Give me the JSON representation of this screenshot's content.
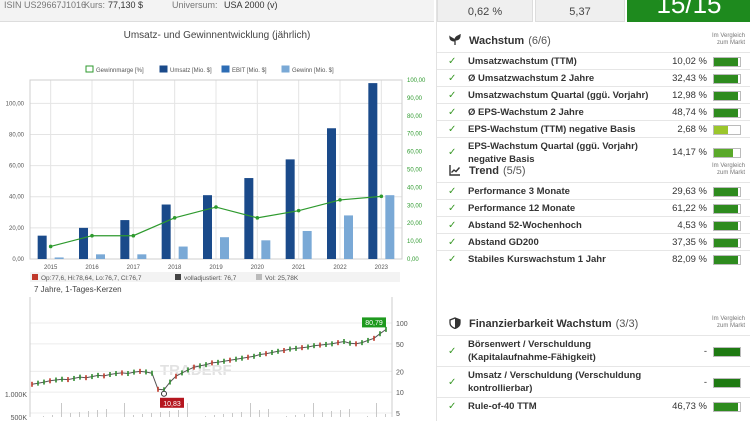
{
  "header": {
    "isin": "ISIN US29667J1016",
    "kurs_label": "Kurs:",
    "kurs_value": "77,130 $",
    "universum_label": "Universum:",
    "universum_value": "USA 2000 (v)"
  },
  "top_cards": {
    "card1": "0,62 %",
    "card2": "5,37",
    "score": "15/15"
  },
  "chart_data": [
    {
      "type": "bar",
      "title": "Umsatz- und Gewinnentwicklung (jährlich)",
      "categories": [
        "2015",
        "2016",
        "2017",
        "2018",
        "2019",
        "2020",
        "2021",
        "2022",
        "2023"
      ],
      "legend": [
        "Gewinnmarge [%]",
        "Umsatz [Mio. $]",
        "EBIT [Mio. $]",
        "Gewinn [Mio. $]"
      ],
      "left_ticks": [
        "0,00",
        "20,00",
        "40,00",
        "60,00",
        "80,00",
        "100,00"
      ],
      "right_ticks": [
        "0,00",
        "10,00",
        "20,00",
        "30,00",
        "40,00",
        "50,00",
        "60,00",
        "70,00",
        "80,00",
        "90,00",
        "100,00"
      ],
      "ylim_left": [
        0,
        115
      ],
      "ylim_right": [
        0,
        100
      ],
      "series": [
        {
          "name": "Umsatz [Mio. $]",
          "color": "#1a4a8a",
          "values": [
            15,
            20,
            25,
            35,
            41,
            52,
            64,
            84,
            113
          ]
        },
        {
          "name": "Gewinn [Mio. $]",
          "color": "#7aa9d6",
          "values": [
            1,
            3,
            3,
            8,
            14,
            12,
            18,
            28,
            41
          ]
        },
        {
          "name": "Gewinnmarge [%]",
          "color": "#2e9a2e",
          "axis": "right",
          "values": [
            7,
            13,
            13,
            23,
            29,
            23,
            27,
            33,
            35
          ]
        }
      ]
    },
    {
      "type": "line",
      "legend_op": "Op:77,6, Hi:78,64, Lo:76,7, Cl:76,7",
      "legend_adj": "volladjustiert: 76,7",
      "legend_vol": "Vol: 25,78K",
      "subtitle": "7 Jahre, 1-Tages-Kerzen",
      "watermark": "TRADERF",
      "last_price": "80,79",
      "low_price": "10,83",
      "price_ticks": [
        "100",
        "50",
        "20",
        "10",
        "5"
      ],
      "volume_ticks": [
        "1.000K",
        "500K"
      ],
      "prices": [
        13,
        13.5,
        14,
        14.6,
        15,
        15.4,
        15.2,
        15.8,
        16.5,
        16.2,
        16.8,
        17.5,
        17.2,
        18,
        18.6,
        19,
        18.6,
        19.5,
        20,
        19.6,
        18.8,
        11,
        10.83,
        14,
        17,
        19,
        21,
        23,
        24,
        25,
        26.5,
        27,
        28,
        29,
        30,
        31,
        32,
        33,
        35,
        36,
        37.5,
        39,
        40,
        42,
        43,
        44,
        45,
        47,
        48,
        49,
        50,
        52,
        54,
        51,
        50,
        52,
        56,
        60,
        70,
        80.79
      ]
    }
  ],
  "sections": [
    {
      "title": "Wachstum",
      "count": "(6/6)",
      "compare": "Im Vergleich zum Markt",
      "rows": [
        {
          "label": "Umsatzwachstum (TTM)",
          "value": "10,02 %",
          "fill": 0.92,
          "color": "#2e8b1e"
        },
        {
          "label": "Ø Umsatzwachstum 2 Jahre",
          "value": "32,43 %",
          "fill": 0.92,
          "color": "#2e8b1e"
        },
        {
          "label": "Umsatzwachstum Quartal (ggü. Vorjahr)",
          "value": "12,98 %",
          "fill": 0.92,
          "color": "#2e8b1e"
        },
        {
          "label": "Ø EPS-Wachstum 2 Jahre",
          "value": "48,74 %",
          "fill": 0.92,
          "color": "#2e8b1e"
        },
        {
          "label": "EPS-Wachstum (TTM) negative Basis",
          "value": "2,68 %",
          "fill": 0.55,
          "color": "#9bc62c"
        },
        {
          "label": "EPS-Wachstum Quartal (ggü. Vorjahr) negative Basis",
          "value": "14,17 %",
          "fill": 0.72,
          "color": "#5aa92a"
        }
      ]
    },
    {
      "title": "Trend",
      "count": "(5/5)",
      "compare": "Im Vergleich zum Markt",
      "rows": [
        {
          "label": "Performance 3 Monate",
          "value": "29,63 %",
          "fill": 0.92,
          "color": "#2e8b1e"
        },
        {
          "label": "Performance 12 Monate",
          "value": "61,22 %",
          "fill": 0.92,
          "color": "#2e8b1e"
        },
        {
          "label": "Abstand 52-Wochenhoch",
          "value": "4,53 %",
          "fill": 0.92,
          "color": "#2e8b1e"
        },
        {
          "label": "Abstand GD200",
          "value": "37,35 %",
          "fill": 0.92,
          "color": "#2e8b1e"
        },
        {
          "label": "Stabiles Kurswachstum 1 Jahr",
          "value": "82,09 %",
          "fill": 0.92,
          "color": "#2e8b1e"
        }
      ]
    },
    {
      "title": "Finanzierbarkeit Wachstum",
      "count": "(3/3)",
      "compare": "Im Vergleich zum Markt",
      "rows": [
        {
          "label": "Börsenwert / Verschuldung (Kapitalaufnahme-Fähigkeit)",
          "value": "-",
          "fill": 1.0,
          "color": "#1e7a12"
        },
        {
          "label": "Umsatz / Verschuldung (Verschuldung kontrollierbar)",
          "value": "-",
          "fill": 1.0,
          "color": "#1e7a12"
        },
        {
          "label": "Rule-of-40 TTM",
          "value": "46,73 %",
          "fill": 0.92,
          "color": "#2e8b1e"
        }
      ]
    }
  ]
}
